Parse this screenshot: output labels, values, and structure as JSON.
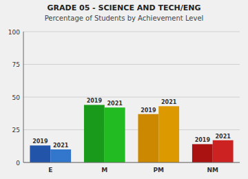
{
  "chart_data": {
    "type": "bar",
    "title": "GRADE 05 - SCIENCE AND TECH/ENG",
    "subtitle": "Percentage of Students by Achievement Level",
    "categories": [
      "E",
      "M",
      "PM",
      "NM"
    ],
    "series": [
      {
        "name": "2019",
        "colors": [
          "#2255aa",
          "#1a9a1a",
          "#cc8800",
          "#aa1111"
        ],
        "values": [
          13,
          44,
          37,
          14
        ]
      },
      {
        "name": "2021",
        "colors": [
          "#3377cc",
          "#22bb22",
          "#dd9900",
          "#cc2222"
        ],
        "values": [
          10,
          42,
          43,
          17
        ]
      }
    ],
    "ylim": [
      0,
      100
    ],
    "yticks": [
      0,
      25,
      50,
      75,
      100
    ],
    "grid": true
  }
}
